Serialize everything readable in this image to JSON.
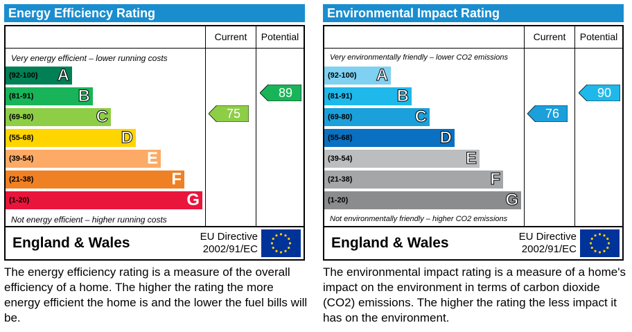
{
  "chart_data": [
    {
      "type": "bar",
      "title": "Energy Efficiency Rating",
      "columns": [
        "Current",
        "Potential"
      ],
      "top_caption": "Very energy efficient – lower running costs",
      "bottom_caption": "Not energy efficient – higher running costs",
      "bands": [
        {
          "range": "(92-100)",
          "letter": "A",
          "color": "#008054"
        },
        {
          "range": "(81-91)",
          "letter": "B",
          "color": "#19b459"
        },
        {
          "range": "(69-80)",
          "letter": "C",
          "color": "#8dce46"
        },
        {
          "range": "(55-68)",
          "letter": "D",
          "color": "#ffd500"
        },
        {
          "range": "(39-54)",
          "letter": "E",
          "color": "#fcaa65"
        },
        {
          "range": "(21-38)",
          "letter": "F",
          "color": "#ef8023"
        },
        {
          "range": "(1-20)",
          "letter": "G",
          "color": "#e9153b"
        }
      ],
      "current": {
        "value": "75",
        "band_index": 2,
        "color": "#8dce46"
      },
      "potential": {
        "value": "89",
        "band_index": 1,
        "color": "#19b459"
      },
      "region": "England & Wales",
      "directive_line1": "EU Directive",
      "directive_line2": "2002/91/EC",
      "description": "The energy efficiency rating is a measure of the overall efficiency of a home.  The higher the rating the more energy efficient the home is and the lower the fuel bills will be."
    },
    {
      "type": "bar",
      "title": "Environmental Impact Rating",
      "columns": [
        "Current",
        "Potential"
      ],
      "top_caption": "Very environmentally friendly – lower CO2 emissions",
      "bottom_caption": "Not environmentally friendly – higher CO2 emissions",
      "bands": [
        {
          "range": "(92-100)",
          "letter": "A",
          "color": "#7fd1f1"
        },
        {
          "range": "(81-91)",
          "letter": "B",
          "color": "#1fb8ea"
        },
        {
          "range": "(69-80)",
          "letter": "C",
          "color": "#1ba0db"
        },
        {
          "range": "(55-68)",
          "letter": "D",
          "color": "#0a70c1"
        },
        {
          "range": "(39-54)",
          "letter": "E",
          "color": "#bbbdbf"
        },
        {
          "range": "(21-38)",
          "letter": "F",
          "color": "#a4a6a8"
        },
        {
          "range": "(1-20)",
          "letter": "G",
          "color": "#8b8c8e"
        }
      ],
      "current": {
        "value": "76",
        "band_index": 2,
        "color": "#1ba0db"
      },
      "potential": {
        "value": "90",
        "band_index": 1,
        "color": "#1fb8ea"
      },
      "region": "England & Wales",
      "directive_line1": "EU Directive",
      "directive_line2": "2002/91/EC",
      "description": "The environmental impact rating is a measure of a home's impact on the environment in terms of carbon dioxide (CO2) emissions.  The higher the rating the less impact it has on the environment."
    }
  ]
}
